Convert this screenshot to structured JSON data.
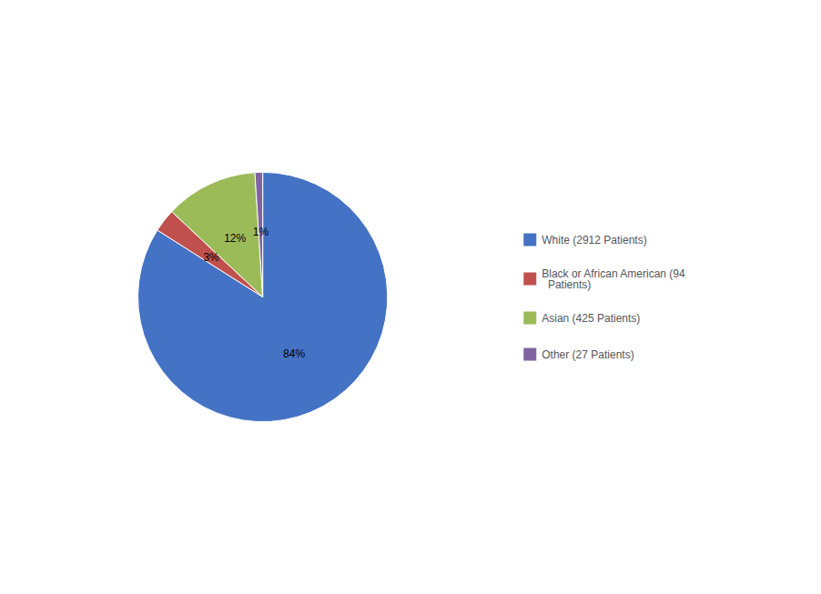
{
  "chart_data": {
    "type": "pie",
    "categories": [
      "White (2912 Patients)",
      "Black or African American (94\n  Patients)",
      "Asian (425 Patients)",
      "Other (27 Patients)"
    ],
    "values": [
      84,
      3,
      12,
      1
    ],
    "value_labels": [
      "84%",
      "3%",
      "12%",
      "1%"
    ],
    "colors": [
      "#4472C4",
      "#C0504D",
      "#9BBB59",
      "#8064A2"
    ],
    "data_labels": true,
    "legend": "right"
  }
}
